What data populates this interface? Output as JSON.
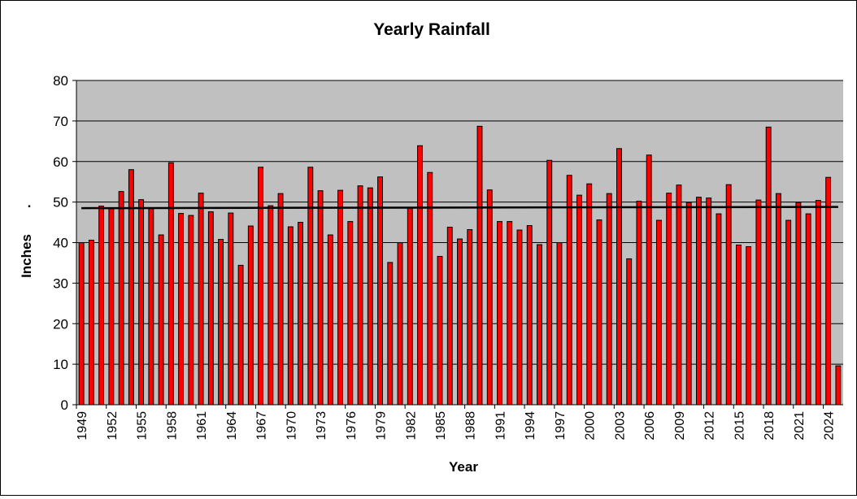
{
  "chart_data": {
    "type": "bar",
    "title": "Yearly Rainfall",
    "xlabel": "Year",
    "ylabel": "Inches",
    "ylabel_mark": ".",
    "ylim": [
      0,
      80
    ],
    "yticks": [
      0,
      10,
      20,
      30,
      40,
      50,
      60,
      70,
      80
    ],
    "grid": true,
    "legend": "none",
    "colors": {
      "plot_background": "#c0c0c0",
      "bar_fill": "#ff0000",
      "bar_stroke": "#000000",
      "gridline": "#000000",
      "trendline": "#000000"
    },
    "categories": [
      1949,
      1950,
      1951,
      1952,
      1953,
      1954,
      1955,
      1956,
      1957,
      1958,
      1959,
      1960,
      1961,
      1962,
      1963,
      1964,
      1965,
      1966,
      1967,
      1968,
      1969,
      1970,
      1971,
      1972,
      1973,
      1974,
      1975,
      1976,
      1977,
      1978,
      1979,
      1980,
      1981,
      1982,
      1983,
      1984,
      1985,
      1986,
      1987,
      1988,
      1989,
      1990,
      1991,
      1992,
      1993,
      1994,
      1995,
      1996,
      1997,
      1998,
      1999,
      2000,
      2001,
      2002,
      2003,
      2004,
      2005,
      2006,
      2007,
      2008,
      2009,
      2010,
      2011,
      2012,
      2013,
      2014,
      2015,
      2016,
      2017,
      2018,
      2019,
      2020,
      2021,
      2022,
      2023,
      2024,
      2025
    ],
    "tick_labels": [
      "1949",
      "1952",
      "1955",
      "1958",
      "1961",
      "1964",
      "1967",
      "1970",
      "1973",
      "1976",
      "1979",
      "1982",
      "1985",
      "1988",
      "1991",
      "1994",
      "1997",
      "2000",
      "2003",
      "2006",
      "2009",
      "2012",
      "2015",
      "2018",
      "2021",
      "2024"
    ],
    "series": [
      {
        "values": [
          40.0,
          40.6,
          49.0,
          48.5,
          52.6,
          58.0,
          50.6,
          48.5,
          41.9,
          59.7,
          47.2,
          46.7,
          52.2,
          47.6,
          40.8,
          47.3,
          34.4,
          44.1,
          58.6,
          49.1,
          52.1,
          43.9,
          45.0,
          58.6,
          52.8,
          41.9,
          52.9,
          45.2,
          54.0,
          53.5,
          56.2,
          35.1,
          40.0,
          48.6,
          63.9,
          57.3,
          36.6,
          43.8,
          40.9,
          43.2,
          68.7,
          53.0,
          45.2,
          45.2,
          43.1,
          44.2,
          39.5,
          60.3,
          40.0,
          56.6,
          51.7,
          54.5,
          45.6,
          52.1,
          63.2,
          36.0,
          50.2,
          61.6,
          45.5,
          52.2,
          54.2,
          49.9,
          51.2,
          51.0,
          47.1,
          54.3,
          39.4,
          39.0,
          50.5,
          68.5,
          52.1,
          45.5,
          49.9,
          47.1,
          50.4,
          56.1,
          9.6
        ]
      }
    ],
    "trendline": {
      "type": "linear",
      "start": 48.5,
      "end": 48.8
    }
  }
}
